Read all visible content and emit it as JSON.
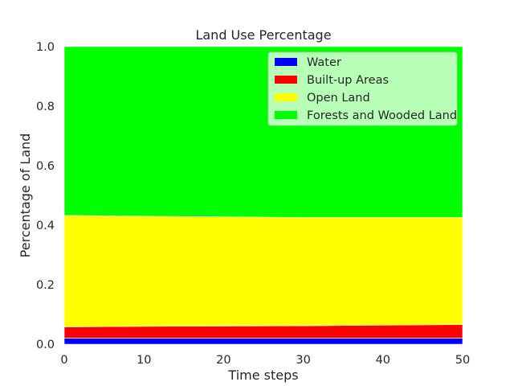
{
  "chart_data": {
    "type": "area",
    "title": "Land Use Percentage",
    "xlabel": "Time steps",
    "ylabel": "Percentage of Land",
    "xlim": [
      0,
      50
    ],
    "ylim": [
      0,
      1.0
    ],
    "xticks": [
      "0",
      "10",
      "20",
      "30",
      "40",
      "50"
    ],
    "yticks": [
      "0.0",
      "0.2",
      "0.4",
      "0.6",
      "0.8",
      "1.0"
    ],
    "grid": false,
    "stacked": true,
    "legend_position": "top-right",
    "x": [
      0,
      10,
      20,
      30,
      40,
      50
    ],
    "series": [
      {
        "name": "Water",
        "color": "#0000ff",
        "values": [
          0.02,
          0.02,
          0.02,
          0.02,
          0.02,
          0.02
        ]
      },
      {
        "name": "Built-up Areas",
        "color": "#ff0000",
        "values": [
          0.038,
          0.04,
          0.041,
          0.042,
          0.044,
          0.046
        ]
      },
      {
        "name": "Open Land",
        "color": "#ffff00",
        "values": [
          0.375,
          0.37,
          0.367,
          0.364,
          0.362,
          0.36
        ]
      },
      {
        "name": "Forests and Wooded Land",
        "color": "#00ff00",
        "values": [
          0.567,
          0.57,
          0.572,
          0.574,
          0.574,
          0.574
        ]
      }
    ]
  }
}
